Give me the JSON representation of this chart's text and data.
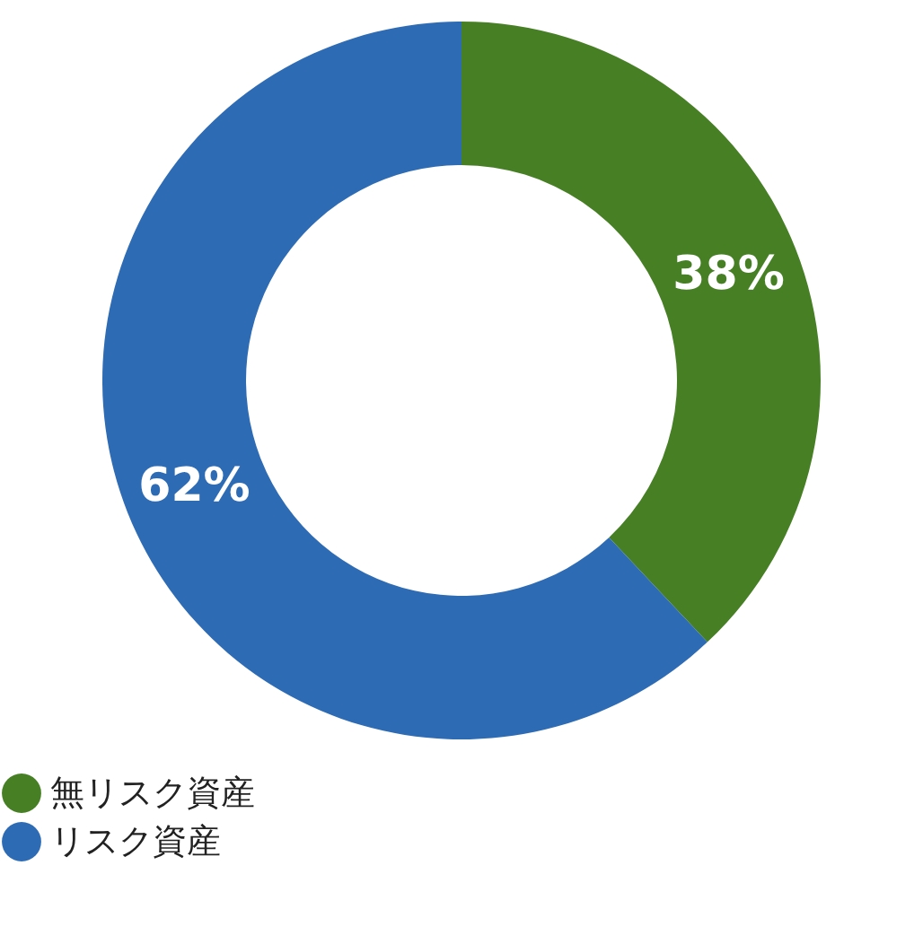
{
  "chart_data": {
    "type": "donut",
    "categories": [
      "無リスク資産",
      "リスク資産"
    ],
    "values": [
      38,
      62
    ],
    "colors": [
      "#477f25",
      "#2e6bb5"
    ],
    "value_labels": [
      "38%",
      "62%"
    ],
    "legend": "bottom"
  }
}
